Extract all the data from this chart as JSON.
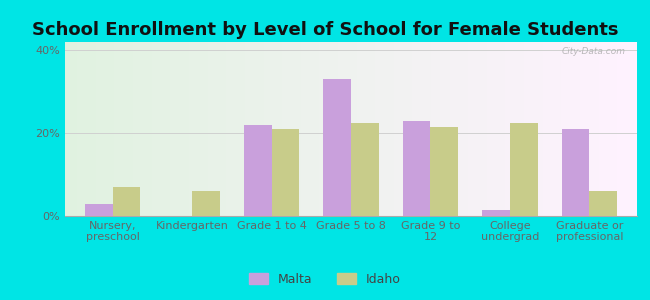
{
  "title": "School Enrollment by Level of School for Female Students",
  "categories": [
    "Nursery,\npreschool",
    "Kindergarten",
    "Grade 1 to 4",
    "Grade 5 to 8",
    "Grade 9 to\n12",
    "College\nundergrad",
    "Graduate or\nprofessional"
  ],
  "malta_values": [
    3.0,
    0.0,
    22.0,
    33.0,
    23.0,
    1.5,
    21.0
  ],
  "idaho_values": [
    7.0,
    6.0,
    21.0,
    22.5,
    21.5,
    22.5,
    6.0
  ],
  "malta_color": "#c9a0dc",
  "idaho_color": "#c8cc8a",
  "background_color": "#00e5e5",
  "yticks": [
    0,
    20,
    40
  ],
  "ylim": [
    0,
    42
  ],
  "bar_width": 0.35,
  "legend_labels": [
    "Malta",
    "Idaho"
  ],
  "watermark": "City-Data.com",
  "title_fontsize": 13,
  "tick_fontsize": 8,
  "legend_fontsize": 9,
  "grid_color": "#d0d0d0",
  "tick_color": "#666666"
}
